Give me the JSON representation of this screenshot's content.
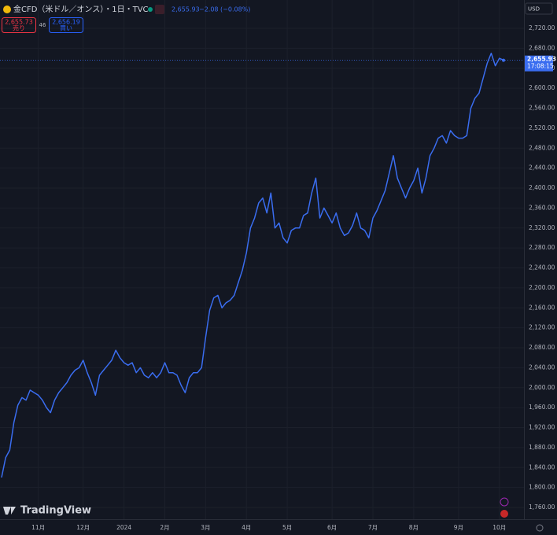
{
  "header": {
    "symbol": "金CFD（米ドル／オンス）・1日・TVC",
    "price": "2,655.93",
    "change": "−2.08 (−0.08%)",
    "sell_price": "2,655.73",
    "sell_label": "売り",
    "spread": "46",
    "buy_price": "2,656.19",
    "buy_label": "買い",
    "currency": "USD",
    "brand": "TradingView"
  },
  "chart_data": {
    "type": "line",
    "categories": [
      null,
      null,
      null,
      null,
      null,
      null,
      null,
      null,
      null,
      "11月",
      null,
      null,
      null,
      null,
      null,
      null,
      null,
      null,
      null,
      null,
      "12月",
      null,
      null,
      null,
      null,
      null,
      null,
      null,
      null,
      null,
      "2024",
      null,
      null,
      null,
      null,
      null,
      null,
      null,
      null,
      null,
      "2月",
      null,
      null,
      null,
      null,
      null,
      null,
      null,
      null,
      null,
      "3月",
      null,
      null,
      null,
      null,
      null,
      null,
      null,
      null,
      null,
      "4月",
      null,
      null,
      null,
      null,
      null,
      null,
      null,
      null,
      null,
      "5月",
      null,
      null,
      null,
      null,
      null,
      null,
      null,
      null,
      null,
      null,
      "6月",
      null,
      null,
      null,
      null,
      null,
      null,
      null,
      null,
      null,
      "7月",
      null,
      null,
      null,
      null,
      null,
      null,
      null,
      null,
      null,
      "8月",
      null,
      null,
      null,
      null,
      null,
      null,
      null,
      null,
      null,
      null,
      "9月",
      null,
      null,
      null,
      null,
      null,
      null,
      null,
      null,
      null,
      "10月",
      null
    ],
    "series": [
      {
        "name": "金CFD",
        "color": "#3a6df0",
        "values": [
          1820,
          1860,
          1875,
          1930,
          1965,
          1980,
          1975,
          1995,
          1990,
          1985,
          1975,
          1960,
          1950,
          1975,
          1990,
          2000,
          2010,
          2025,
          2035,
          2040,
          2055,
          2030,
          2010,
          1985,
          2025,
          2035,
          2045,
          2055,
          2075,
          2060,
          2050,
          2045,
          2050,
          2030,
          2040,
          2025,
          2020,
          2030,
          2020,
          2030,
          2050,
          2030,
          2030,
          2025,
          2005,
          1990,
          2020,
          2030,
          2030,
          2040,
          2100,
          2155,
          2180,
          2185,
          2160,
          2170,
          2175,
          2185,
          2210,
          2235,
          2270,
          2320,
          2340,
          2370,
          2380,
          2350,
          2390,
          2320,
          2330,
          2300,
          2290,
          2315,
          2320,
          2320,
          2345,
          2350,
          2390,
          2420,
          2340,
          2360,
          2345,
          2330,
          2350,
          2320,
          2305,
          2310,
          2325,
          2350,
          2320,
          2315,
          2300,
          2340,
          2355,
          2375,
          2395,
          2430,
          2465,
          2420,
          2400,
          2380,
          2400,
          2415,
          2440,
          2390,
          2420,
          2465,
          2480,
          2500,
          2505,
          2490,
          2515,
          2505,
          2500,
          2500,
          2505,
          2560,
          2580,
          2590,
          2620,
          2650,
          2670,
          2645,
          2660,
          2655.93
        ]
      }
    ],
    "last_value_label": "2,655.93",
    "countdown": "17:08:15",
    "ylim": [
      1760,
      2720
    ],
    "yticks": [
      {
        "value": 1760,
        "label": "1,760.00"
      },
      {
        "value": 1800,
        "label": "1,800.00"
      },
      {
        "value": 1840,
        "label": "1,840.00"
      },
      {
        "value": 1880,
        "label": "1,880.00"
      },
      {
        "value": 1920,
        "label": "1,920.00"
      },
      {
        "value": 1960,
        "label": "1,960.00"
      },
      {
        "value": 2000,
        "label": "2,000.00"
      },
      {
        "value": 2040,
        "label": "2,040.00"
      },
      {
        "value": 2080,
        "label": "2,080.00"
      },
      {
        "value": 2120,
        "label": "2,120.00"
      },
      {
        "value": 2160,
        "label": "2,160.00"
      },
      {
        "value": 2200,
        "label": "2,200.00"
      },
      {
        "value": 2240,
        "label": "2,240.00"
      },
      {
        "value": 2280,
        "label": "2,280.00"
      },
      {
        "value": 2320,
        "label": "2,320.00"
      },
      {
        "value": 2360,
        "label": "2,360.00"
      },
      {
        "value": 2400,
        "label": "2,400.00"
      },
      {
        "value": 2440,
        "label": "2,440.00"
      },
      {
        "value": 2480,
        "label": "2,480.00"
      },
      {
        "value": 2520,
        "label": "2,520.00"
      },
      {
        "value": 2560,
        "label": "2,560.00"
      },
      {
        "value": 2600,
        "label": "2,600.00"
      },
      {
        "value": 2640,
        "label": "2,640.00"
      },
      {
        "value": 2680,
        "label": "2,680.00"
      },
      {
        "value": 2720,
        "label": "2,720.00"
      }
    ],
    "grid": true
  }
}
